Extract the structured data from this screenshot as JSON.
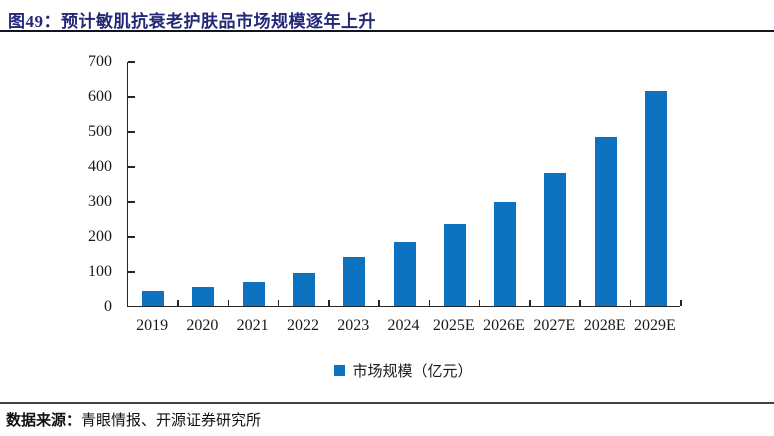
{
  "page": {
    "title": "图49：预计敏肌抗衰老护肤品市场规模逐年上升",
    "source_label": "数据来源：",
    "source_text": "青眼情报、开源证券研究所"
  },
  "legend": {
    "marker": "square",
    "label": "市场规模（亿元）"
  },
  "colors": {
    "bar": "#0d72bf",
    "title_text": "#232878",
    "axis": "#262626"
  },
  "chart_data": {
    "type": "bar",
    "title": "预计敏肌抗衰老护肤品市场规模逐年上升",
    "categories": [
      "2019",
      "2020",
      "2021",
      "2022",
      "2023",
      "2024",
      "2025E",
      "2026E",
      "2027E",
      "2028E",
      "2029E"
    ],
    "values": [
      43,
      54,
      68,
      93,
      140,
      182,
      234,
      297,
      379,
      484,
      613
    ],
    "series_name": "市场规模（亿元）",
    "xlabel": "",
    "ylabel": "",
    "unit": "亿元",
    "ylim": [
      0,
      700
    ],
    "yticks": [
      0,
      100,
      200,
      300,
      400,
      500,
      600,
      700
    ],
    "grid": false,
    "legend_position": "bottom"
  }
}
